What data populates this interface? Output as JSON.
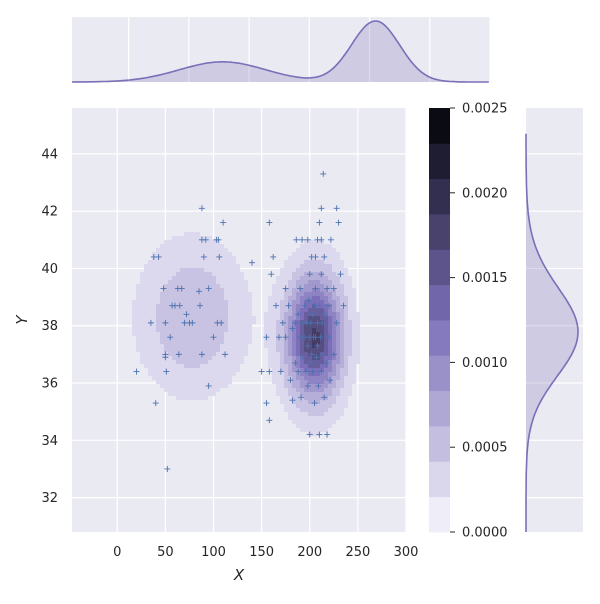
{
  "chart_data": {
    "type": "jointplot-kde",
    "xlabel": "X",
    "ylabel": "Y",
    "x_ticks": [
      0,
      50,
      100,
      150,
      200,
      250,
      300
    ],
    "y_ticks": [
      32,
      34,
      36,
      38,
      40,
      42,
      44
    ],
    "xlim": [
      -47,
      300
    ],
    "ylim": [
      30.8,
      45.6
    ],
    "grid": true,
    "colorbar": {
      "ticks": [
        "0.0000",
        "0.0005",
        "0.0010",
        "0.0015",
        "0.0020",
        "0.0025"
      ],
      "min": 0,
      "max": 0.0025,
      "levels": 12
    },
    "colors": {
      "background": "#eaeaf2",
      "grid": "#ffffff",
      "kde_line": "#7a6fb8",
      "marker": "#4c72b0",
      "cmap_low": "#efedf7",
      "cmap_high": "#0b0b14"
    },
    "kde_clusters": [
      {
        "cx": 205,
        "cy": 37.6,
        "sx": 20,
        "sy": 1.45,
        "weight": 0.78
      },
      {
        "cx": 78,
        "cy": 38.3,
        "sx": 36,
        "sy": 1.7,
        "weight": 0.22
      }
    ],
    "points": [
      [
        20,
        36.4
      ],
      [
        35,
        38.1
      ],
      [
        38,
        40.4
      ],
      [
        40,
        35.3
      ],
      [
        43,
        40.4
      ],
      [
        48,
        39.3
      ],
      [
        50,
        38.1
      ],
      [
        50,
        37.0
      ],
      [
        50,
        36.9
      ],
      [
        51,
        36.4
      ],
      [
        52,
        33.0
      ],
      [
        55,
        37.6
      ],
      [
        57,
        38.7
      ],
      [
        60,
        38.7
      ],
      [
        63,
        39.3
      ],
      [
        64,
        37.0
      ],
      [
        65,
        38.7
      ],
      [
        67,
        39.3
      ],
      [
        70,
        38.1
      ],
      [
        72,
        38.4
      ],
      [
        75,
        38.1
      ],
      [
        78,
        38.1
      ],
      [
        85,
        39.2
      ],
      [
        86,
        38.7
      ],
      [
        88,
        42.1
      ],
      [
        88,
        41.0
      ],
      [
        88,
        37.0
      ],
      [
        90,
        40.4
      ],
      [
        92,
        41.0
      ],
      [
        95,
        35.9
      ],
      [
        95,
        39.3
      ],
      [
        100,
        37.6
      ],
      [
        103,
        41.0
      ],
      [
        104,
        38.1
      ],
      [
        105,
        41.0
      ],
      [
        106,
        40.4
      ],
      [
        108,
        38.1
      ],
      [
        110,
        41.6
      ],
      [
        112,
        37.0
      ],
      [
        140,
        40.2
      ],
      [
        150,
        36.4
      ],
      [
        155,
        35.3
      ],
      [
        155,
        37.6
      ],
      [
        158,
        41.6
      ],
      [
        158,
        36.4
      ],
      [
        158,
        34.7
      ],
      [
        160,
        39.8
      ],
      [
        162,
        40.4
      ],
      [
        165,
        38.7
      ],
      [
        168,
        37.6
      ],
      [
        170,
        36.4
      ],
      [
        172,
        38.1
      ],
      [
        175,
        39.3
      ],
      [
        175,
        37.6
      ],
      [
        178,
        38.7
      ],
      [
        180,
        36.1
      ],
      [
        182,
        35.4
      ],
      [
        182,
        37.9
      ],
      [
        185,
        38.1
      ],
      [
        185,
        36.7
      ],
      [
        186,
        41.0
      ],
      [
        188,
        38.4
      ],
      [
        188,
        36.4
      ],
      [
        190,
        37.6
      ],
      [
        190,
        39.3
      ],
      [
        191,
        35.5
      ],
      [
        192,
        41.0
      ],
      [
        192,
        38.1
      ],
      [
        193,
        36.9
      ],
      [
        195,
        37.6
      ],
      [
        195,
        38.7
      ],
      [
        196,
        36.4
      ],
      [
        197,
        38.1
      ],
      [
        198,
        37.3
      ],
      [
        198,
        35.9
      ],
      [
        199,
        38.9
      ],
      [
        200,
        37.6
      ],
      [
        200,
        36.7
      ],
      [
        200,
        39.8
      ],
      [
        200,
        34.2
      ],
      [
        201,
        38.1
      ],
      [
        202,
        37.0
      ],
      [
        202,
        40.4
      ],
      [
        203,
        38.4
      ],
      [
        203,
        36.4
      ],
      [
        204,
        37.6
      ],
      [
        205,
        35.3
      ],
      [
        205,
        38.7
      ],
      [
        206,
        37.6
      ],
      [
        206,
        39.3
      ],
      [
        207,
        36.9
      ],
      [
        208,
        38.1
      ],
      [
        208,
        37.3
      ],
      [
        209,
        35.9
      ],
      [
        210,
        38.7
      ],
      [
        210,
        34.2
      ],
      [
        210,
        41.6
      ],
      [
        211,
        37.6
      ],
      [
        212,
        36.4
      ],
      [
        212,
        39.8
      ],
      [
        213,
        38.1
      ],
      [
        214,
        37.0
      ],
      [
        215,
        40.4
      ],
      [
        215,
        35.5
      ],
      [
        216,
        38.4
      ],
      [
        217,
        36.7
      ],
      [
        218,
        39.3
      ],
      [
        218,
        34.2
      ],
      [
        220,
        37.6
      ],
      [
        220,
        38.7
      ],
      [
        221,
        36.1
      ],
      [
        222,
        41.0
      ],
      [
        225,
        39.3
      ],
      [
        225,
        37.0
      ],
      [
        228,
        42.1
      ],
      [
        228,
        38.1
      ],
      [
        230,
        41.6
      ],
      [
        232,
        39.8
      ],
      [
        235,
        38.7
      ],
      [
        212,
        42.1
      ],
      [
        214,
        43.3
      ],
      [
        198,
        41.0
      ],
      [
        206,
        40.4
      ],
      [
        212,
        41.0
      ],
      [
        208,
        41.0
      ]
    ]
  }
}
